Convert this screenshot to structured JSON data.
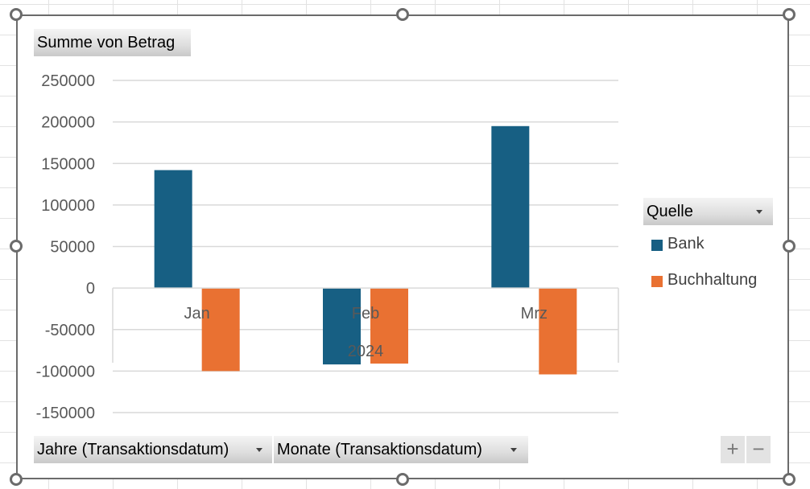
{
  "chart_data": {
    "type": "bar",
    "title": "",
    "value_field": "Summe von Betrag",
    "categories": [
      "Jan",
      "Feb",
      "Mrz"
    ],
    "category_group": "2024",
    "series": [
      {
        "name": "Bank",
        "color": "#175f83",
        "values": [
          142000,
          -92000,
          195000
        ]
      },
      {
        "name": "Buchhaltung",
        "color": "#e97132",
        "values": [
          -100000,
          -91000,
          -104000
        ]
      }
    ],
    "ylim": [
      -150000,
      250000
    ],
    "yticks": [
      250000,
      200000,
      150000,
      100000,
      50000,
      0,
      -50000,
      -100000,
      -150000
    ],
    "grid": true,
    "legend_title": "Quelle",
    "legend_position": "right"
  },
  "field_buttons": {
    "value": "Summe von Betrag",
    "legend": "Quelle",
    "axis_1": "Jahre (Transaktionsdatum)",
    "axis_2": "Monate (Transaktionsdatum)"
  },
  "zoom": {
    "plus": "+",
    "minus": "−"
  }
}
